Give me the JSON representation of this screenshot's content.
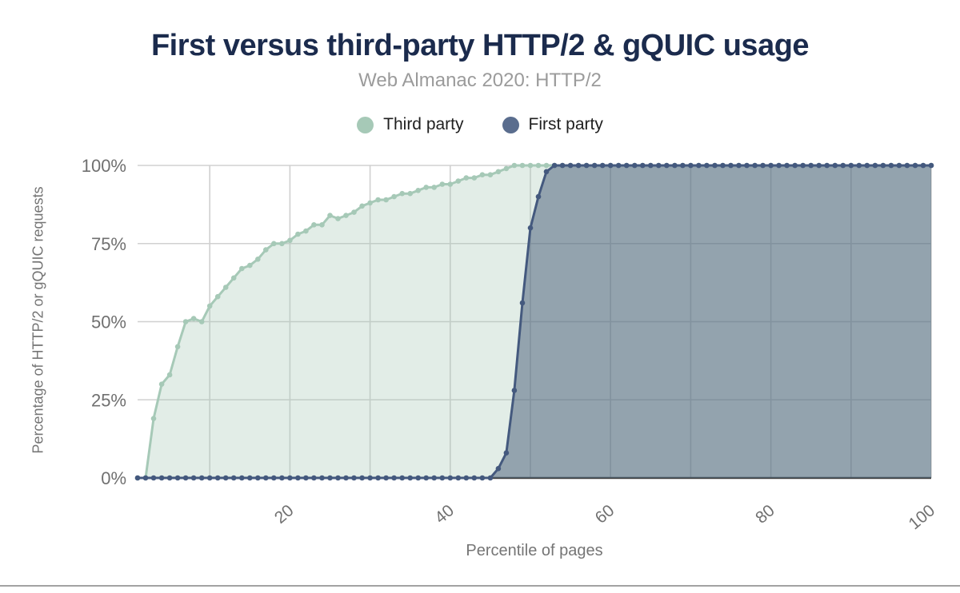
{
  "chart_data": {
    "type": "area",
    "title": "First versus third-party HTTP/2 & gQUIC usage",
    "subtitle": "Web Almanac 2020: HTTP/2",
    "xlabel": "Percentile of pages",
    "ylabel": "Percentage of HTTP/2 or gQUIC requests",
    "x_unit": "percentile (1-100)",
    "xlim": [
      1,
      100
    ],
    "ylim": [
      0,
      100
    ],
    "grid": true,
    "legend_position": "top-center",
    "x_tick_values": [
      20,
      40,
      60,
      80,
      100
    ],
    "x_tick_labels": [
      "20",
      "40",
      "60",
      "80",
      "100"
    ],
    "y_tick_values": [
      0,
      25,
      50,
      75,
      100
    ],
    "y_tick_labels": [
      "0%",
      "25%",
      "50%",
      "75%",
      "100%"
    ],
    "vertical_gridline_step": 10,
    "series": [
      {
        "name": "Third party",
        "color": "#a6c9b7",
        "legend_color": "#a6c9b7",
        "fill": "rgba(167,200,183,0.33)",
        "values": [
          0,
          0,
          19,
          30,
          33,
          42,
          50,
          51,
          50,
          55,
          58,
          61,
          64,
          67,
          68,
          70,
          73,
          75,
          75,
          76,
          78,
          79,
          81,
          81,
          84,
          83,
          84,
          85,
          87,
          88,
          89,
          89,
          90,
          91,
          91,
          92,
          93,
          93,
          94,
          94,
          95,
          96,
          96,
          97,
          97,
          98,
          99,
          100,
          100,
          100,
          100,
          100,
          100,
          100,
          100,
          100,
          100,
          100,
          100,
          100,
          100,
          100,
          100,
          100,
          100,
          100,
          100,
          100,
          100,
          100,
          100,
          100,
          100,
          100,
          100,
          100,
          100,
          100,
          100,
          100,
          100,
          100,
          100,
          100,
          100,
          100,
          100,
          100,
          100,
          100,
          100,
          100,
          100,
          100,
          100,
          100,
          100,
          100,
          100,
          100
        ]
      },
      {
        "name": "First party",
        "color": "#44597e",
        "legend_color": "#5a6d8e",
        "fill": "rgba(61,81,112,0.48)",
        "values": [
          0,
          0,
          0,
          0,
          0,
          0,
          0,
          0,
          0,
          0,
          0,
          0,
          0,
          0,
          0,
          0,
          0,
          0,
          0,
          0,
          0,
          0,
          0,
          0,
          0,
          0,
          0,
          0,
          0,
          0,
          0,
          0,
          0,
          0,
          0,
          0,
          0,
          0,
          0,
          0,
          0,
          0,
          0,
          0,
          0,
          3,
          8,
          28,
          56,
          80,
          90,
          98,
          100,
          100,
          100,
          100,
          100,
          100,
          100,
          100,
          100,
          100,
          100,
          100,
          100,
          100,
          100,
          100,
          100,
          100,
          100,
          100,
          100,
          100,
          100,
          100,
          100,
          100,
          100,
          100,
          100,
          100,
          100,
          100,
          100,
          100,
          100,
          100,
          100,
          100,
          100,
          100,
          100,
          100,
          100,
          100,
          100,
          100,
          100,
          100
        ]
      }
    ],
    "colors": {
      "title_text": "#1b2b4d",
      "subtitle_text": "#9b9b9b",
      "legend_text": "#1f1f1f",
      "tick_text": "#707070",
      "axis_title_text": "#757575",
      "gridline": "#d0d0d0",
      "baseline": "#3b3b3b",
      "bottom_rule": "#a2a2a2"
    }
  }
}
